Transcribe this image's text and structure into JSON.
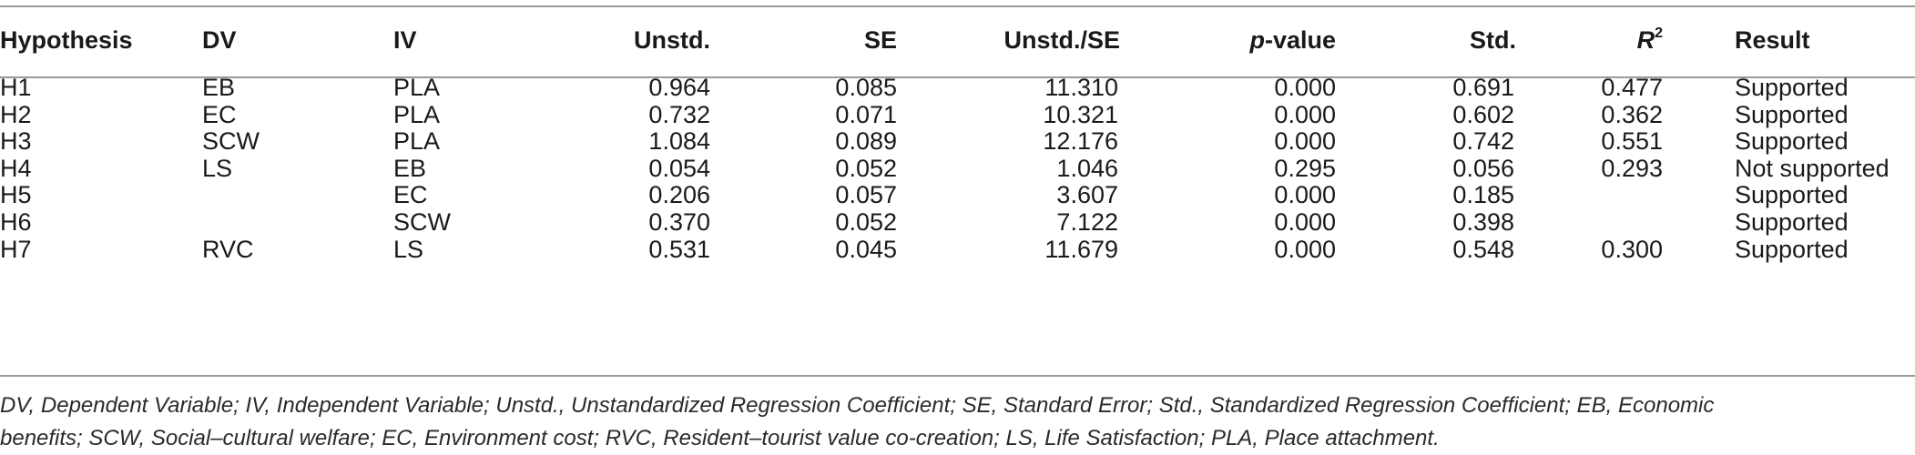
{
  "table": {
    "headers": {
      "hypothesis": "Hypothesis",
      "dv": "DV",
      "iv": "IV",
      "unstd": "Unstd.",
      "se": "SE",
      "ratio": "Unstd./SE",
      "p_italic": "p",
      "p_rest": "-value",
      "std": "Std.",
      "r2_base": "R",
      "r2_sup": "2",
      "result": "Result"
    },
    "rows": [
      {
        "hypothesis": "H1",
        "dv": "EB",
        "iv": "PLA",
        "unstd": "0.964",
        "se": "0.085",
        "ratio": "11.310",
        "p": "0.000",
        "std": "0.691",
        "r2": "0.477",
        "result": "Supported"
      },
      {
        "hypothesis": "H2",
        "dv": "EC",
        "iv": "PLA",
        "unstd": "0.732",
        "se": "0.071",
        "ratio": "10.321",
        "p": "0.000",
        "std": "0.602",
        "r2": "0.362",
        "result": "Supported"
      },
      {
        "hypothesis": "H3",
        "dv": "SCW",
        "iv": "PLA",
        "unstd": "1.084",
        "se": "0.089",
        "ratio": "12.176",
        "p": "0.000",
        "std": "0.742",
        "r2": "0.551",
        "result": "Supported"
      },
      {
        "hypothesis": "H4",
        "dv": "LS",
        "iv": "EB",
        "unstd": "0.054",
        "se": "0.052",
        "ratio": "1.046",
        "p": "0.295",
        "std": "0.056",
        "r2": "0.293",
        "result": "Not supported"
      },
      {
        "hypothesis": "H5",
        "dv": "",
        "iv": "EC",
        "unstd": "0.206",
        "se": "0.057",
        "ratio": "3.607",
        "p": "0.000",
        "std": "0.185",
        "r2": "",
        "result": "Supported"
      },
      {
        "hypothesis": "H6",
        "dv": "",
        "iv": "SCW",
        "unstd": "0.370",
        "se": "0.052",
        "ratio": "7.122",
        "p": "0.000",
        "std": "0.398",
        "r2": "",
        "result": "Supported"
      },
      {
        "hypothesis": "H7",
        "dv": "RVC",
        "iv": "LS",
        "unstd": "0.531",
        "se": "0.045",
        "ratio": "11.679",
        "p": "0.000",
        "std": "0.548",
        "r2": "0.300",
        "result": "Supported"
      }
    ],
    "footnote_line1": "DV, Dependent Variable; IV, Independent Variable; Unstd., Unstandardized Regression Coefficient; SE, Standard Error; Std., Standardized Regression Coefficient; EB, Economic",
    "footnote_line2": "benefits; SCW, Social–cultural welfare; EC, Environment cost; RVC, Resident–tourist value co-creation; LS, Life Satisfaction; PLA, Place attachment."
  }
}
